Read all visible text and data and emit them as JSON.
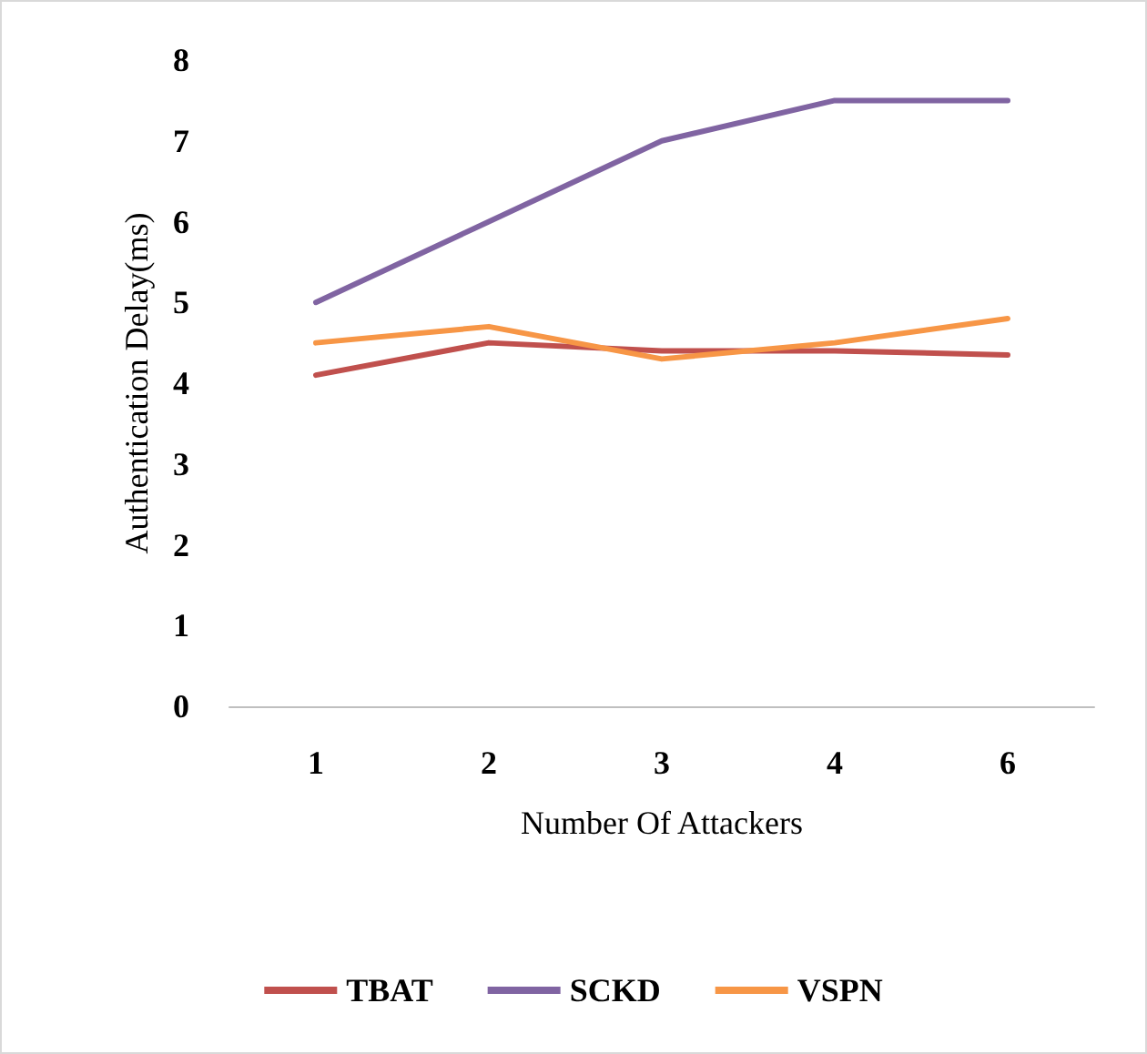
{
  "chart_data": {
    "type": "line",
    "xlabel": "Number Of Attackers",
    "ylabel": "Authentication Delay(ms)",
    "categories": [
      "1",
      "2",
      "3",
      "4",
      "6"
    ],
    "series": [
      {
        "name": "TBAT",
        "color": "#c0504d",
        "values": [
          4.1,
          4.5,
          4.4,
          4.4,
          4.35
        ]
      },
      {
        "name": "SCKD",
        "color": "#8064a2",
        "values": [
          5,
          6,
          7,
          7.5,
          7.5
        ]
      },
      {
        "name": "VSPN",
        "color": "#f79646",
        "values": [
          4.5,
          4.7,
          4.3,
          4.5,
          4.8
        ]
      }
    ],
    "ylim": [
      0,
      8
    ],
    "yticks": [
      0,
      1,
      2,
      3,
      4,
      5,
      6,
      7,
      8
    ],
    "grid": false,
    "legend": "bottom",
    "marker": "none",
    "line_style": "solid"
  }
}
